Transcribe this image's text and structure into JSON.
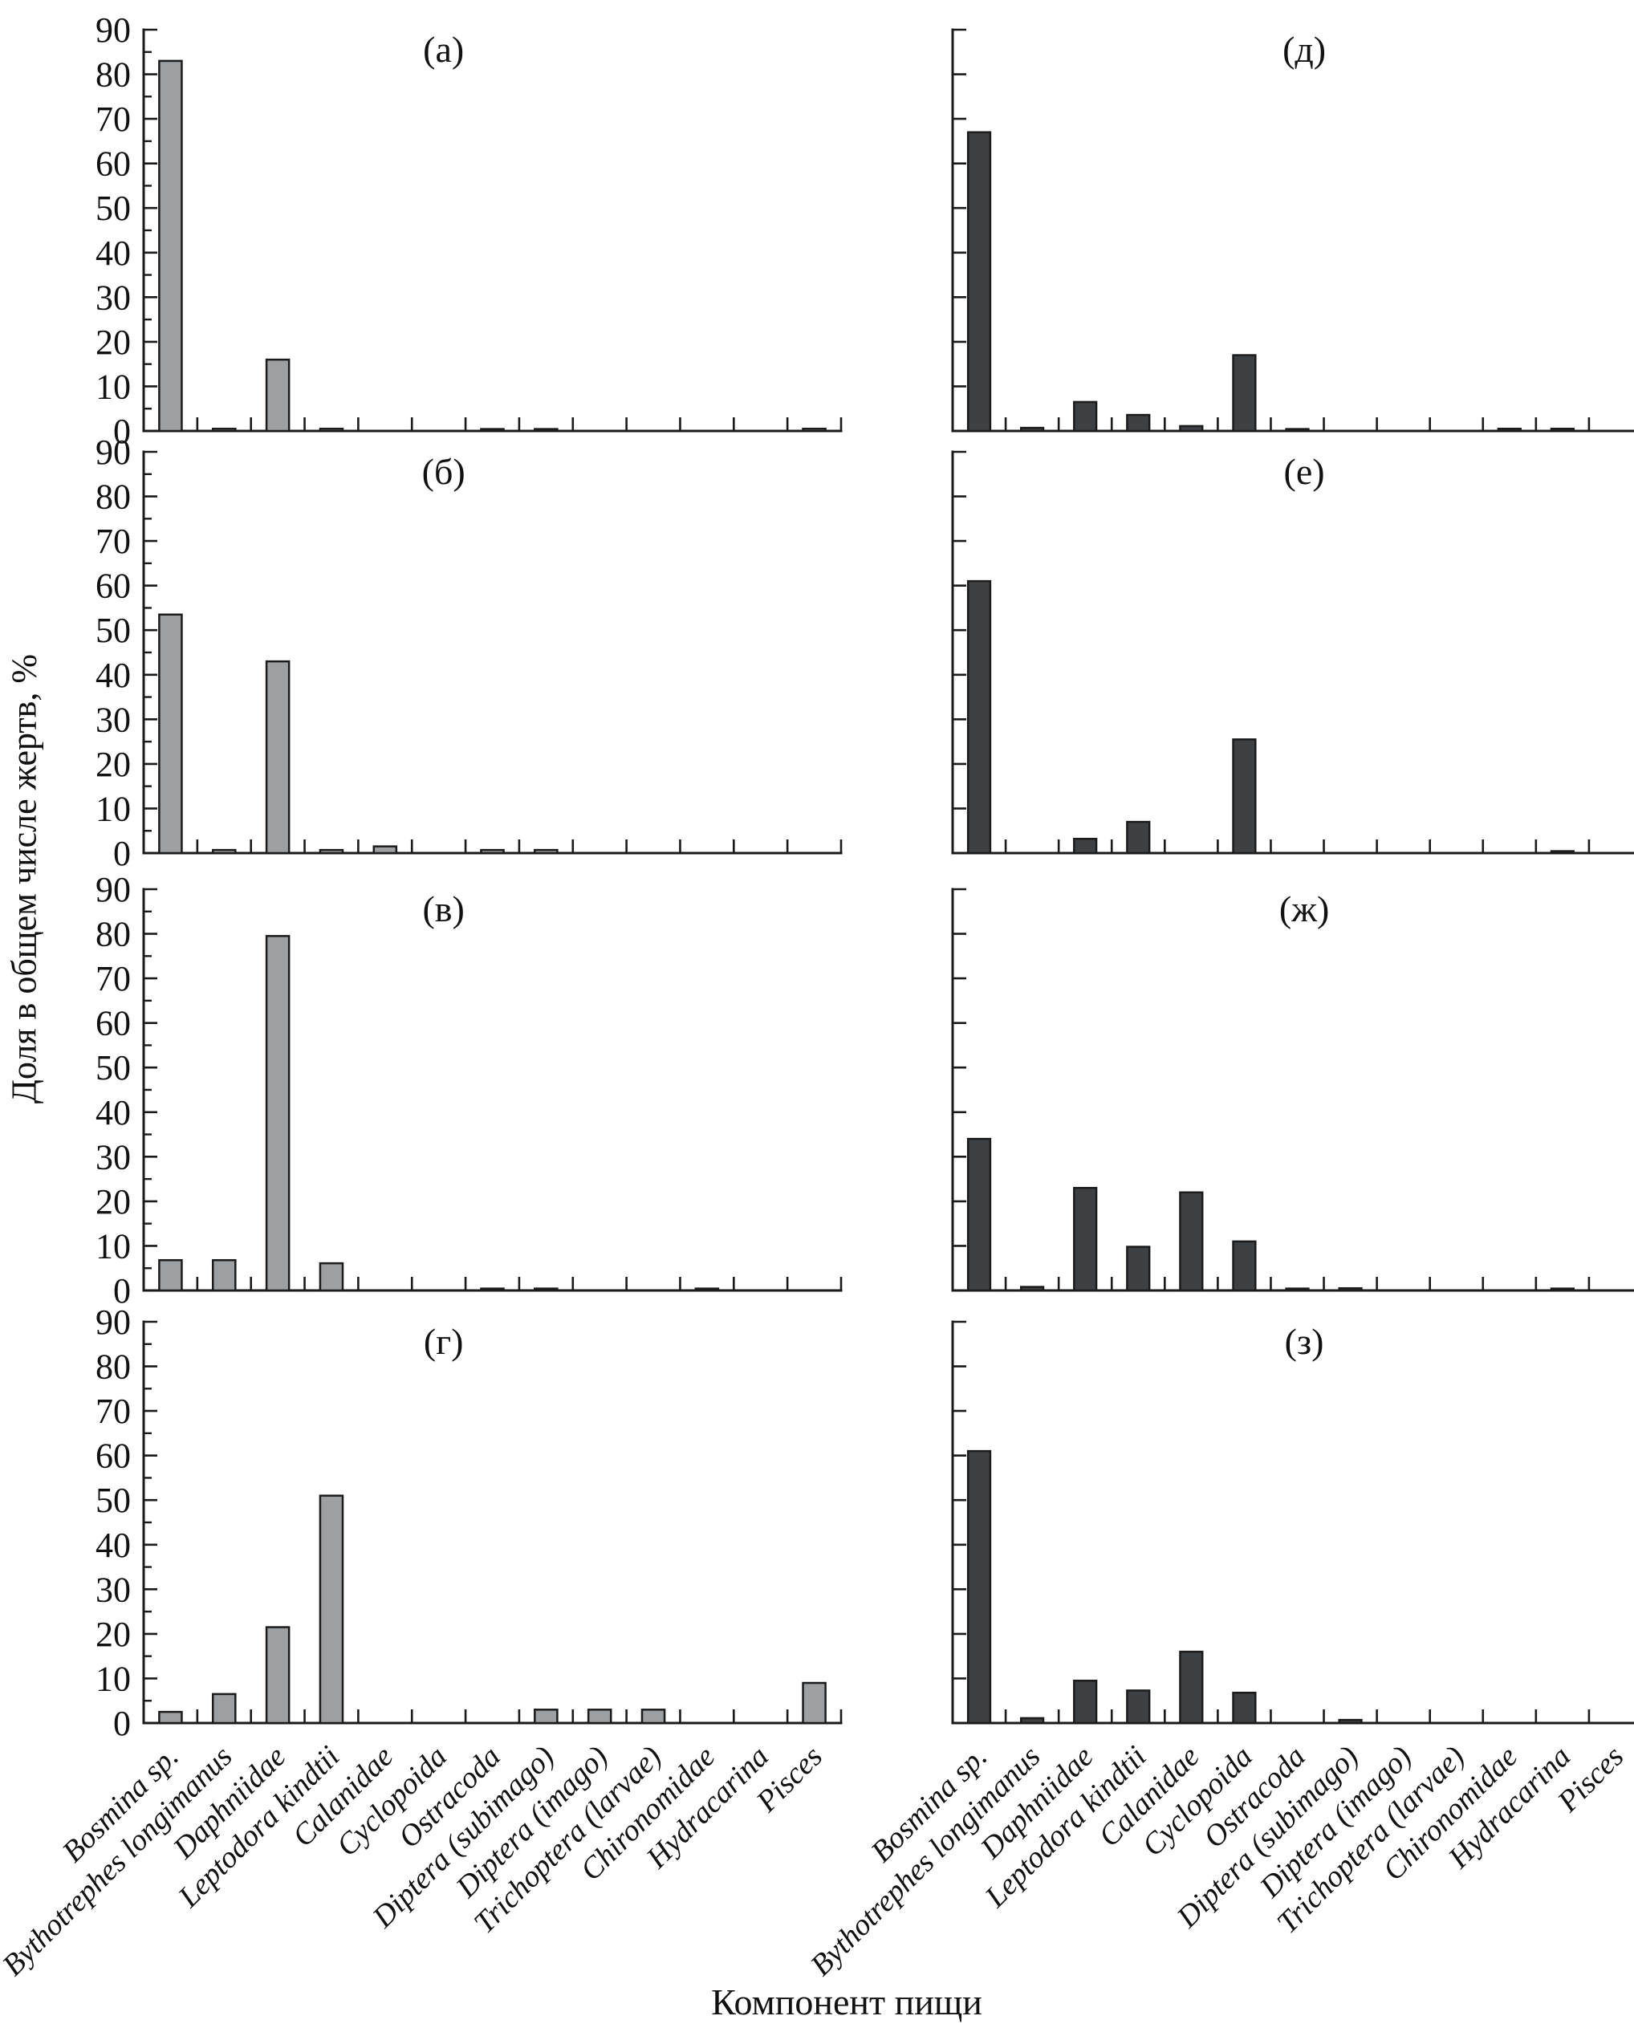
{
  "figure": {
    "ylabel": "Доля в общем числе жертв, %",
    "xlabel": "Компонент пищи"
  },
  "chart_data": {
    "type": "bar",
    "title": "",
    "xlabel": "Компонент пищи",
    "ylabel": "Доля в общем числе жертв, %",
    "ylim": [
      0,
      90
    ],
    "ytick_step": 10,
    "y_minor_step": 5,
    "grid": "off",
    "legend": "none",
    "ytick_labels": [
      "0",
      "10",
      "20",
      "30",
      "40",
      "50",
      "60",
      "70",
      "80",
      "90"
    ],
    "categories": [
      "Bosmina sp.",
      "Bythotrephes longimanus",
      "Daphniidae",
      "Leptodora kindtii",
      "Calanidae",
      "Cyclopoida",
      "Ostracoda",
      "Diptera (subimago)",
      "Diptera (imago)",
      "Trichoptera (larvae)",
      "Chironomidae",
      "Hydracarina",
      "Pisces"
    ],
    "panels": [
      {
        "label": "(а)",
        "column": "left",
        "values": [
          83,
          0.5,
          16,
          0.5,
          0,
          0,
          0.4,
          0.4,
          0,
          0,
          0,
          0,
          0.5
        ]
      },
      {
        "label": "(б)",
        "column": "left",
        "values": [
          53.5,
          0.7,
          43,
          0.7,
          1.5,
          0,
          0.7,
          0.7,
          0,
          0,
          0,
          0,
          0
        ]
      },
      {
        "label": "(в)",
        "column": "left",
        "values": [
          6.8,
          6.8,
          79.5,
          6.1,
          0,
          0,
          0.4,
          0.4,
          0,
          0,
          0.4,
          0,
          0
        ]
      },
      {
        "label": "(г)",
        "column": "left",
        "values": [
          2.5,
          6.5,
          21.5,
          51,
          0,
          0,
          0,
          3,
          3,
          3,
          0,
          0,
          9
        ]
      },
      {
        "label": "(д)",
        "column": "right",
        "values": [
          67,
          0.7,
          6.5,
          3.6,
          1.1,
          17,
          0.4,
          0,
          0,
          0,
          0.5,
          0.5,
          0
        ]
      },
      {
        "label": "(е)",
        "column": "right",
        "values": [
          61,
          0,
          3.2,
          7,
          0,
          25.5,
          0,
          0,
          0,
          0,
          0,
          0.4,
          0
        ]
      },
      {
        "label": "(ж)",
        "column": "right",
        "values": [
          34,
          0.8,
          23,
          9.8,
          22,
          11,
          0.4,
          0.5,
          0,
          0,
          0,
          0.4,
          0
        ]
      },
      {
        "label": "(з)",
        "column": "right",
        "values": [
          61,
          1.1,
          9.5,
          7.3,
          16,
          6.8,
          0,
          0.7,
          0,
          0,
          0,
          0,
          0
        ]
      }
    ],
    "colors": {
      "left_bar_fill": "#9da0a2",
      "right_bar_fill": "#3e4144",
      "bar_edge": "#1b1b1b",
      "axis": "#1a1a1a",
      "text": "#111111"
    },
    "notes": "y tick labels shown on left-column panels only; x category labels shown under bottom row only; all category labels italic, rotated 45°"
  }
}
